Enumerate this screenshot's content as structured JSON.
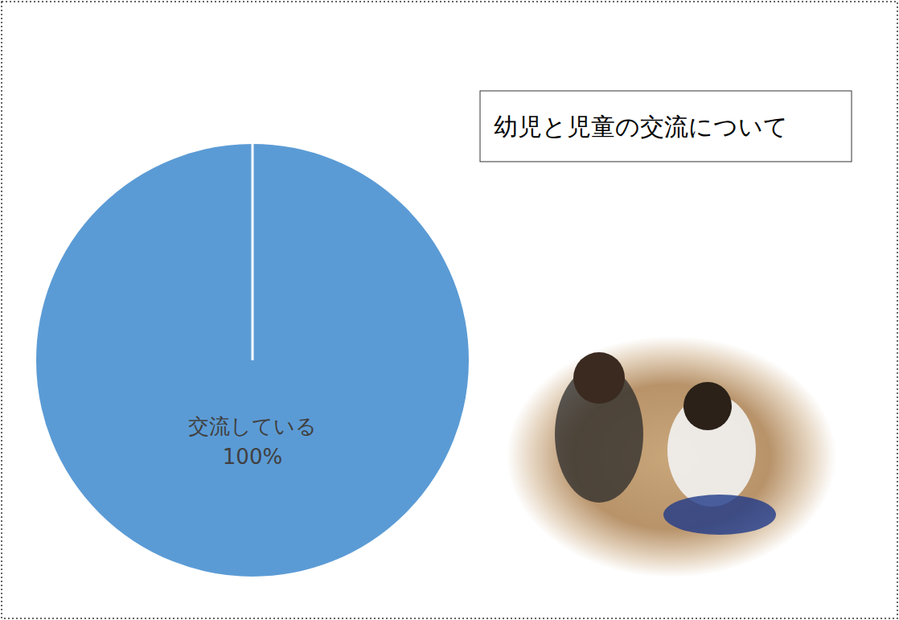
{
  "chart_data": {
    "type": "pie",
    "title": "幼児と児童の交流について",
    "categories": [
      "交流している"
    ],
    "values": [
      100
    ],
    "value_labels": [
      "100%"
    ],
    "colors": [
      "#5b9bd5"
    ],
    "data_labels": true
  }
}
